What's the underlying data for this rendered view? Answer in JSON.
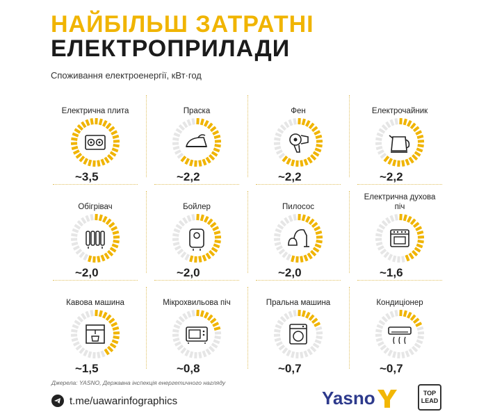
{
  "header": {
    "title_line1": "НАЙБІЛЬШ ЗАТРАТНІ",
    "title_line2": "ЕЛЕКТРОПРИЛАДИ",
    "subtitle": "Споживання електроенергії, кВт·год"
  },
  "colors": {
    "accent": "#f0b400",
    "ring_empty": "#e6e6e6",
    "dark": "#1b1b1b",
    "brand_blue": "#2d3a8c"
  },
  "appliances": [
    {
      "label": "Електрична плита",
      "value": "~3,5",
      "icon": "electric-stove-icon",
      "fill": 1.0
    },
    {
      "label": "Праска",
      "value": "~2,2",
      "icon": "iron-icon",
      "fill": 0.63
    },
    {
      "label": "Фен",
      "value": "~2,2",
      "icon": "hair-dryer-icon",
      "fill": 0.63
    },
    {
      "label": "Електрочайник",
      "value": "~2,2",
      "icon": "electric-kettle-icon",
      "fill": 0.63
    },
    {
      "label": "Обігрівач",
      "value": "~2,0",
      "icon": "heater-icon",
      "fill": 0.57
    },
    {
      "label": "Бойлер",
      "value": "~2,0",
      "icon": "boiler-icon",
      "fill": 0.57
    },
    {
      "label": "Пилосос",
      "value": "~2,0",
      "icon": "vacuum-cleaner-icon",
      "fill": 0.57
    },
    {
      "label": "Електрична духова піч",
      "value": "~1,6",
      "icon": "oven-icon",
      "fill": 0.46
    },
    {
      "label": "Кавова машина",
      "value": "~1,5",
      "icon": "coffee-machine-icon",
      "fill": 0.43
    },
    {
      "label": "Мікрохвильова піч",
      "value": "~0,8",
      "icon": "microwave-icon",
      "fill": 0.23
    },
    {
      "label": "Пральна машина",
      "value": "~0,7",
      "icon": "washing-machine-icon",
      "fill": 0.2
    },
    {
      "label": "Кондиціонер",
      "value": "~0,7",
      "icon": "air-conditioner-icon",
      "fill": 0.2
    }
  ],
  "footer": {
    "source": "Джерела: YASNO, Державна інспекція енергетичного нагляду",
    "telegram": "t.me/uawarinfographics",
    "brand": "Yasno",
    "partner_line1": "TOP",
    "partner_line2": "LEAD"
  }
}
